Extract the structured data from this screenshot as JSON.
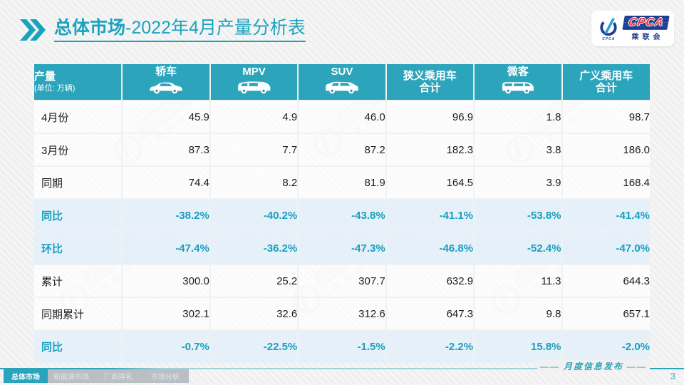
{
  "title": {
    "highlight": "总体市场",
    "rest": "-2022年4月产量分析表"
  },
  "logo": {
    "acronym": "CPCA",
    "chinese": "乘联会",
    "emblem_caption": "CPCA"
  },
  "table": {
    "header": {
      "label": "产量",
      "unit": "(单位: 万辆)",
      "columns": [
        {
          "label": "轿车",
          "icon": "sedan-icon"
        },
        {
          "label": "MPV",
          "icon": "mpv-icon"
        },
        {
          "label": "SUV",
          "icon": "suv-icon"
        },
        {
          "label": "狭义乘用车\n合计",
          "icon": null
        },
        {
          "label": "微客",
          "icon": "microvan-icon"
        },
        {
          "label": "广义乘用车\n合计",
          "icon": null
        }
      ]
    },
    "rows": [
      {
        "label": "4月份",
        "type": "number",
        "values": [
          "45.9",
          "4.9",
          "46.0",
          "96.9",
          "1.8",
          "98.7"
        ]
      },
      {
        "label": "3月份",
        "type": "number",
        "values": [
          "87.3",
          "7.7",
          "87.2",
          "182.3",
          "3.8",
          "186.0"
        ]
      },
      {
        "label": "同期",
        "type": "number",
        "values": [
          "74.4",
          "8.2",
          "81.9",
          "164.5",
          "3.9",
          "168.4"
        ]
      },
      {
        "label": "同比",
        "type": "percent",
        "values": [
          "-38.2%",
          "-40.2%",
          "-43.8%",
          "-41.1%",
          "-53.8%",
          "-41.4%"
        ]
      },
      {
        "label": "环比",
        "type": "percent",
        "values": [
          "-47.4%",
          "-36.2%",
          "-47.3%",
          "-46.8%",
          "-52.4%",
          "-47.0%"
        ]
      },
      {
        "label": "累计",
        "type": "number",
        "values": [
          "300.0",
          "25.2",
          "307.7",
          "632.9",
          "11.3",
          "644.3"
        ]
      },
      {
        "label": "同期累计",
        "type": "number",
        "values": [
          "302.1",
          "32.6",
          "312.6",
          "647.3",
          "9.8",
          "657.1"
        ]
      },
      {
        "label": "同比",
        "type": "percent",
        "values": [
          "-0.7%",
          "-22.5%",
          "-1.5%",
          "-2.2%",
          "15.8%",
          "-2.0%"
        ]
      }
    ]
  },
  "footer": {
    "tabs": [
      {
        "label": "总体市场",
        "active": true
      },
      {
        "label": "新能源市场",
        "active": false
      },
      {
        "label": "厂商排名",
        "active": false
      },
      {
        "label": "市场分析",
        "active": false
      }
    ],
    "publication": "月度信息发布",
    "publication_decor": "——",
    "page_number": "3"
  },
  "watermark": {
    "acronym": "CPCA",
    "chinese": "乘联会"
  },
  "colors": {
    "accent": "#18a3be",
    "table_header_bg": "#2ba4bc",
    "percent_row_bg": "#e4f0f8",
    "percent_text": "#189fc0",
    "logo_navy": "#1e3e92",
    "logo_red": "#e4393c"
  }
}
